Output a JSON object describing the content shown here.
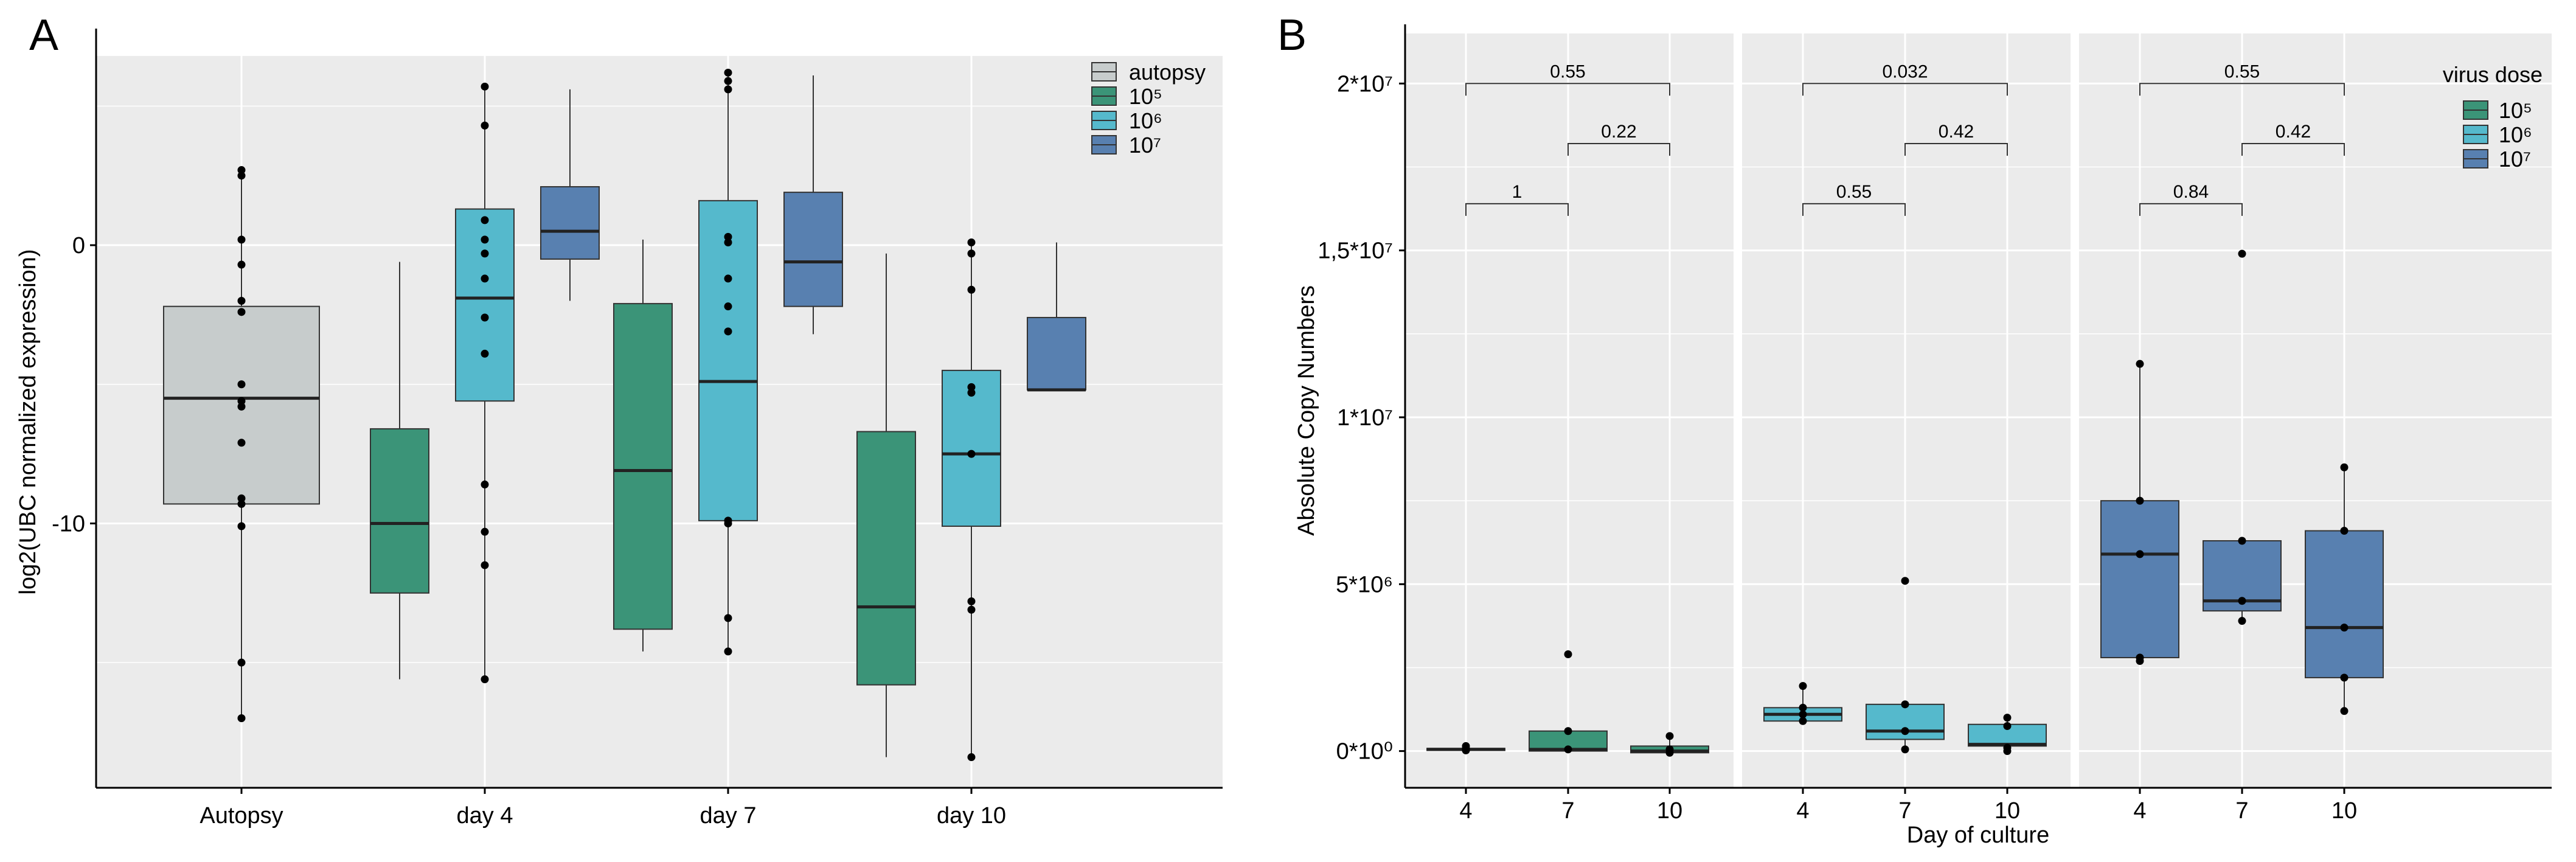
{
  "chart_data": [
    {
      "panel_label": "A",
      "type": "box",
      "title": "",
      "xlabel": "",
      "ylabel": "log2(UBC normalized expression)",
      "ylim": [
        -19.5,
        6.8
      ],
      "yticks": [
        0,
        -10
      ],
      "ytick_labels": [
        "0",
        "-10"
      ],
      "grid": true,
      "categories": [
        "Autopsy",
        "day 4",
        "day 7",
        "day 10"
      ],
      "legend": {
        "title": "",
        "position": "top-right",
        "entries": [
          {
            "label": "autopsy",
            "color": "#c7cccc"
          },
          {
            "label": "10⁵",
            "color": "#3b9478"
          },
          {
            "label": "10⁶",
            "color": "#55b9cc"
          },
          {
            "label": "10⁷",
            "color": "#5880b0"
          }
        ]
      },
      "boxes": [
        {
          "category": 0,
          "series": 0,
          "q1": -9.3,
          "median": -5.5,
          "q3": -2.2,
          "whisker_low": -17.0,
          "whisker_high": 2.8,
          "points": [
            2.7,
            2.5,
            0.2,
            -0.7,
            -2.0,
            -2.4,
            -5.0,
            -5.6,
            -5.8,
            -7.1,
            -9.1,
            -9.3,
            -10.1,
            -15.0,
            -17.0
          ]
        },
        {
          "category": 1,
          "series": 1,
          "q1": -12.5,
          "median": -10.0,
          "q3": -6.6,
          "whisker_low": -15.6,
          "whisker_high": -0.6,
          "points": []
        },
        {
          "category": 1,
          "series": 2,
          "q1": -5.6,
          "median": -1.9,
          "q3": 1.3,
          "whisker_low": -15.6,
          "whisker_high": 5.6,
          "points": [
            5.7,
            4.3,
            0.9,
            0.2,
            -0.3,
            -1.2,
            -2.6,
            -3.9,
            -8.6,
            -10.3,
            -11.5,
            -15.6
          ]
        },
        {
          "category": 1,
          "series": 3,
          "q1": -0.5,
          "median": 0.5,
          "q3": 2.1,
          "whisker_low": -2.0,
          "whisker_high": 5.6,
          "points": []
        },
        {
          "category": 2,
          "series": 1,
          "q1": -13.8,
          "median": -8.1,
          "q3": -2.1,
          "whisker_low": -14.6,
          "whisker_high": 0.2,
          "points": []
        },
        {
          "category": 2,
          "series": 2,
          "q1": -9.9,
          "median": -4.9,
          "q3": 1.6,
          "whisker_low": -14.6,
          "whisker_high": 6.2,
          "points": [
            6.2,
            5.9,
            5.6,
            0.3,
            0.1,
            -1.2,
            -2.2,
            -3.1,
            -9.9,
            -10.0,
            -13.4,
            -14.6
          ]
        },
        {
          "category": 2,
          "series": 3,
          "q1": -2.2,
          "median": -0.6,
          "q3": 1.9,
          "whisker_low": -3.2,
          "whisker_high": 6.1,
          "points": []
        },
        {
          "category": 3,
          "series": 1,
          "q1": -15.8,
          "median": -13.0,
          "q3": -6.7,
          "whisker_low": -18.4,
          "whisker_high": -0.3,
          "points": []
        },
        {
          "category": 3,
          "series": 2,
          "q1": -10.1,
          "median": -7.5,
          "q3": -4.5,
          "whisker_low": -18.4,
          "whisker_high": 0.1,
          "points": [
            0.1,
            -0.3,
            -1.6,
            -5.1,
            -5.3,
            -7.5,
            -12.8,
            -13.1,
            -18.4
          ]
        },
        {
          "category": 3,
          "series": 3,
          "q1": -5.2,
          "median": -5.2,
          "q3": -2.6,
          "whisker_low": -5.2,
          "whisker_high": 0.1,
          "points": []
        }
      ]
    },
    {
      "panel_label": "B",
      "type": "box",
      "title": "",
      "xlabel": "Day of culture",
      "ylabel": "Absolute Copy Numbers",
      "ylim": [
        -1100000,
        21500000
      ],
      "yticks": [
        0,
        5000000,
        10000000,
        15000000,
        20000000
      ],
      "ytick_labels": [
        "0*10⁰",
        "5*10⁶",
        "1*10⁷",
        "1,5*10⁷",
        "2*10⁷"
      ],
      "grid": true,
      "facets": [
        "10⁵",
        "10⁶",
        "10⁷"
      ],
      "categories": [
        "4",
        "7",
        "10"
      ],
      "legend": {
        "title": "virus dose",
        "position": "top-right",
        "entries": [
          {
            "label": "10⁵",
            "color": "#3b9478"
          },
          {
            "label": "10⁶",
            "color": "#55b9cc"
          },
          {
            "label": "10⁷",
            "color": "#5880b0"
          }
        ]
      },
      "boxes": [
        {
          "facet": 0,
          "category": 0,
          "q1": 20000,
          "median": 50000,
          "q3": 80000,
          "whisker_low": 0,
          "whisker_high": 150000,
          "points": [
            150000,
            80000,
            40000,
            20000
          ]
        },
        {
          "facet": 0,
          "category": 1,
          "q1": 0,
          "median": 50000,
          "q3": 600000,
          "whisker_low": 0,
          "whisker_high": 600000,
          "points": [
            2900000,
            600000,
            50000
          ]
        },
        {
          "facet": 0,
          "category": 2,
          "q1": -50000,
          "median": 0,
          "q3": 150000,
          "whisker_low": -50000,
          "whisker_high": 450000,
          "points": [
            450000,
            50000,
            -50000
          ]
        },
        {
          "facet": 1,
          "category": 0,
          "q1": 900000,
          "median": 1100000,
          "q3": 1300000,
          "whisker_low": 900000,
          "whisker_high": 1900000,
          "points": [
            1950000,
            1300000,
            1100000,
            900000
          ]
        },
        {
          "facet": 1,
          "category": 1,
          "q1": 350000,
          "median": 600000,
          "q3": 1400000,
          "whisker_low": 50000,
          "whisker_high": 1400000,
          "points": [
            5100000,
            1400000,
            600000,
            50000
          ]
        },
        {
          "facet": 1,
          "category": 2,
          "q1": 150000,
          "median": 200000,
          "q3": 800000,
          "whisker_low": 0,
          "whisker_high": 1000000,
          "points": [
            1000000,
            750000,
            100000,
            0
          ]
        },
        {
          "facet": 2,
          "category": 0,
          "q1": 2800000,
          "median": 5900000,
          "q3": 7500000,
          "whisker_low": 2700000,
          "whisker_high": 11600000,
          "points": [
            11600000,
            7500000,
            5900000,
            2800000,
            2700000
          ]
        },
        {
          "facet": 2,
          "category": 1,
          "q1": 4200000,
          "median": 4500000,
          "q3": 6300000,
          "whisker_low": 3900000,
          "whisker_high": 6300000,
          "points": [
            14900000,
            6300000,
            4500000,
            3900000
          ]
        },
        {
          "facet": 2,
          "category": 2,
          "q1": 2200000,
          "median": 3700000,
          "q3": 6600000,
          "whisker_low": 1200000,
          "whisker_high": 8500000,
          "points": [
            8500000,
            6600000,
            3700000,
            2200000,
            1200000
          ]
        }
      ],
      "comparisons": [
        {
          "facet": 0,
          "from": 0,
          "to": 2,
          "level": 20000000,
          "label": "0.55"
        },
        {
          "facet": 0,
          "from": 1,
          "to": 2,
          "level": 18200000,
          "label": "0.22"
        },
        {
          "facet": 0,
          "from": 0,
          "to": 1,
          "level": 16400000,
          "label": "1"
        },
        {
          "facet": 1,
          "from": 0,
          "to": 2,
          "level": 20000000,
          "label": "0.032"
        },
        {
          "facet": 1,
          "from": 1,
          "to": 2,
          "level": 18200000,
          "label": "0.42"
        },
        {
          "facet": 1,
          "from": 0,
          "to": 1,
          "level": 16400000,
          "label": "0.55"
        },
        {
          "facet": 2,
          "from": 0,
          "to": 2,
          "level": 20000000,
          "label": "0.55"
        },
        {
          "facet": 2,
          "from": 1,
          "to": 2,
          "level": 18200000,
          "label": "0.42"
        },
        {
          "facet": 2,
          "from": 0,
          "to": 1,
          "level": 16400000,
          "label": "0.84"
        }
      ]
    }
  ]
}
